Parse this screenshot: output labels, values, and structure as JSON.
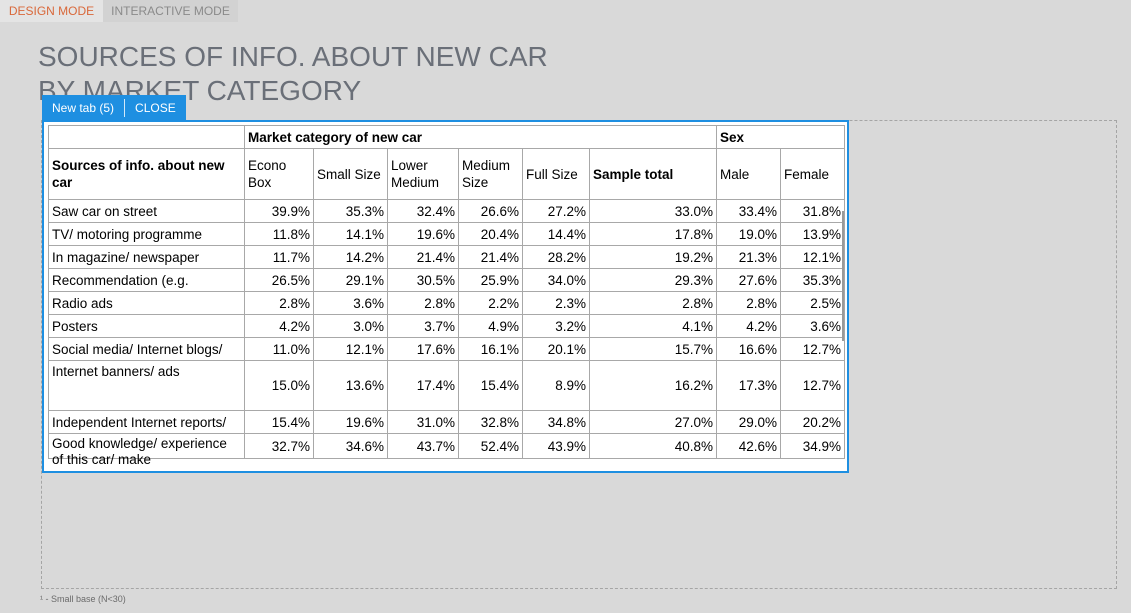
{
  "modes": {
    "design": "DESIGN MODE",
    "interactive": "INTERACTIVE MODE"
  },
  "title": {
    "line1": "SOURCES OF INFO. ABOUT NEW CAR",
    "line2": "BY MARKET CATEGORY"
  },
  "tabstrip": {
    "tab_label": "New tab (5)",
    "close_label": "CLOSE"
  },
  "table": {
    "group_headers": {
      "market": "Market category of new car",
      "sex": "Sex"
    },
    "row_header": "Sources of info. about new car",
    "columns": [
      "Econo Box",
      "Small Size",
      "Lower Medium",
      "Medium Size",
      "Full Size",
      "Sample total",
      "Male",
      "Female"
    ],
    "rows": [
      {
        "label": "Saw car on street",
        "values": [
          "39.9%",
          "35.3%",
          "32.4%",
          "26.6%",
          "27.2%",
          "33.0%",
          "33.4%",
          "31.8%"
        ]
      },
      {
        "label": "TV/ motoring programme",
        "values": [
          "11.8%",
          "14.1%",
          "19.6%",
          "20.4%",
          "14.4%",
          "17.8%",
          "19.0%",
          "13.9%"
        ]
      },
      {
        "label": "In magazine/ newspaper",
        "values": [
          "11.7%",
          "14.2%",
          "21.4%",
          "21.4%",
          "28.2%",
          "19.2%",
          "21.3%",
          "12.1%"
        ]
      },
      {
        "label": "Recommendation (e.g.",
        "values": [
          "26.5%",
          "29.1%",
          "30.5%",
          "25.9%",
          "34.0%",
          "29.3%",
          "27.6%",
          "35.3%"
        ]
      },
      {
        "label": "Radio ads",
        "values": [
          "2.8%",
          "3.6%",
          "2.8%",
          "2.2%",
          "2.3%",
          "2.8%",
          "2.8%",
          "2.5%"
        ]
      },
      {
        "label": "Posters",
        "values": [
          "4.2%",
          "3.0%",
          "3.7%",
          "4.9%",
          "3.2%",
          "4.1%",
          "4.2%",
          "3.6%"
        ]
      },
      {
        "label": "Social media/ Internet blogs/",
        "values": [
          "11.0%",
          "12.1%",
          "17.6%",
          "16.1%",
          "20.1%",
          "15.7%",
          "16.6%",
          "12.7%"
        ]
      },
      {
        "label": "Internet banners/ ads",
        "values": [
          "15.0%",
          "13.6%",
          "17.4%",
          "15.4%",
          "8.9%",
          "16.2%",
          "17.3%",
          "12.7%"
        ]
      },
      {
        "label": "Independent Internet reports/",
        "values": [
          "15.4%",
          "19.6%",
          "31.0%",
          "32.8%",
          "34.8%",
          "27.0%",
          "29.0%",
          "20.2%"
        ]
      },
      {
        "label": "Good knowledge/ experience of this car/ make",
        "values": [
          "32.7%",
          "34.6%",
          "43.7%",
          "52.4%",
          "43.9%",
          "40.8%",
          "42.6%",
          "34.9%"
        ]
      }
    ]
  },
  "footnote": "¹ - Small base (N<30)"
}
